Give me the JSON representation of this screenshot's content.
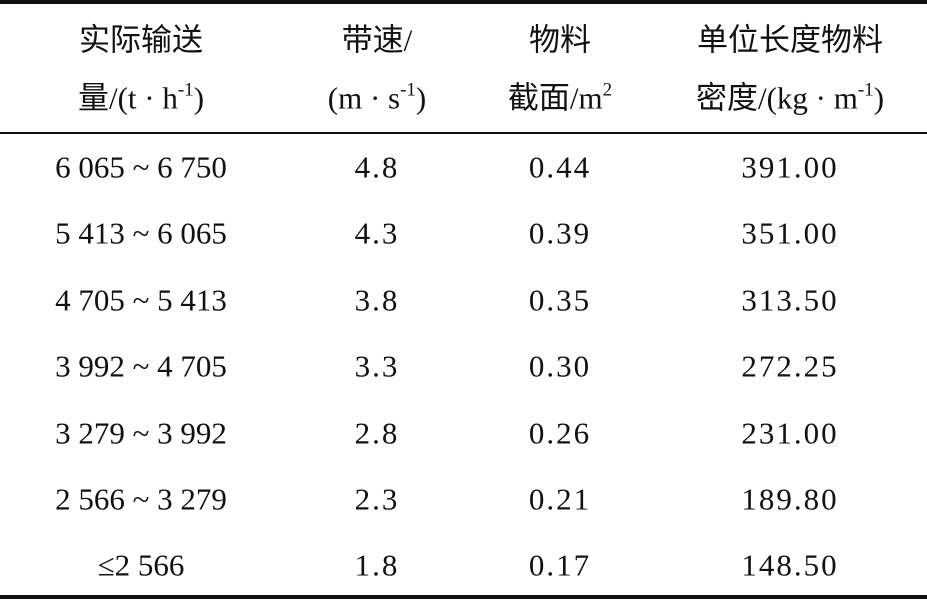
{
  "table": {
    "headers": [
      {
        "line1": "实际输送",
        "line2_pre": "量/(t · h",
        "line2_sup": "-1",
        "line2_post": ")"
      },
      {
        "line1": "带速/",
        "line2_pre": "(m · s",
        "line2_sup": "-1",
        "line2_post": ")"
      },
      {
        "line1": "物料",
        "line2_pre": "截面/m",
        "line2_sup": "2",
        "line2_post": ""
      },
      {
        "line1": "单位长度物料",
        "line2_pre": "密度/(kg · m",
        "line2_sup": "-1",
        "line2_post": ")"
      }
    ],
    "rows": [
      [
        "6 065 ~ 6 750",
        "4.8",
        "0.44",
        "391.00"
      ],
      [
        "5 413 ~ 6 065",
        "4.3",
        "0.39",
        "351.00"
      ],
      [
        "4 705 ~ 5 413",
        "3.8",
        "0.35",
        "313.50"
      ],
      [
        "3 992 ~ 4 705",
        "3.3",
        "0.30",
        "272.25"
      ],
      [
        "3 279 ~ 3 992",
        "2.8",
        "0.26",
        "231.00"
      ],
      [
        "2 566 ~ 3 279",
        "2.3",
        "0.21",
        "189.80"
      ],
      [
        "≤2 566",
        "1.8",
        "0.17",
        "148.50"
      ]
    ]
  }
}
